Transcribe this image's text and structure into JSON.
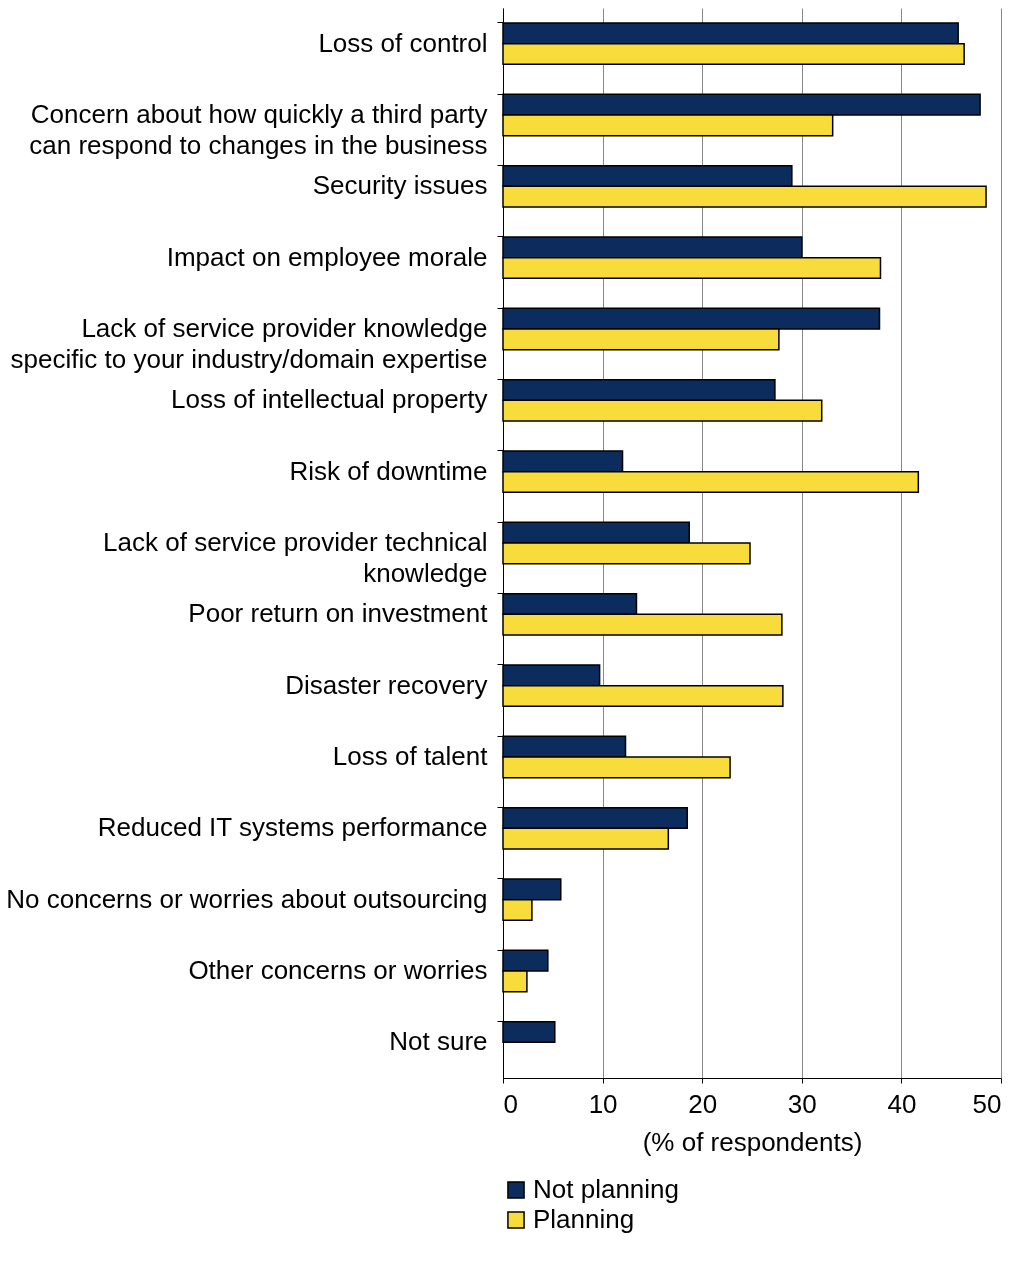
{
  "chart_data": {
    "type": "bar",
    "orientation": "horizontal",
    "xlabel": "(% of respondents)",
    "categories": [
      "Loss of control",
      "Concern about how quickly a third party\ncan respond to changes in the business",
      "Security issues",
      "Impact on employee morale",
      "Lack of service provider knowledge\nspecific to your industry/domain expertise",
      "Loss of intellectual property",
      "Risk of downtime",
      "Lack of service provider technical\nknowledge",
      "Poor return on investment",
      "Disaster recovery",
      "Loss of talent",
      "Reduced IT systems performance",
      "No concerns or worries about outsourcing",
      "Other concerns or worries",
      "Not sure"
    ],
    "series": [
      {
        "name": "Not planning",
        "color": "#0b2c5c",
        "values": [
          45.7,
          47.9,
          29.0,
          30.0,
          37.8,
          27.3,
          12.0,
          18.7,
          13.4,
          9.7,
          12.3,
          18.5,
          5.8,
          4.5,
          5.2
        ]
      },
      {
        "name": "Planning",
        "color": "#f8dc3c",
        "values": [
          46.3,
          33.1,
          48.5,
          37.9,
          27.7,
          32.0,
          41.7,
          24.8,
          28.0,
          28.1,
          22.8,
          16.6,
          2.9,
          2.4,
          null
        ]
      }
    ],
    "xlim": [
      0,
      50
    ],
    "xticks": [
      0,
      10,
      20,
      30,
      40,
      50
    ],
    "grid": "x",
    "legend": "bottom"
  }
}
